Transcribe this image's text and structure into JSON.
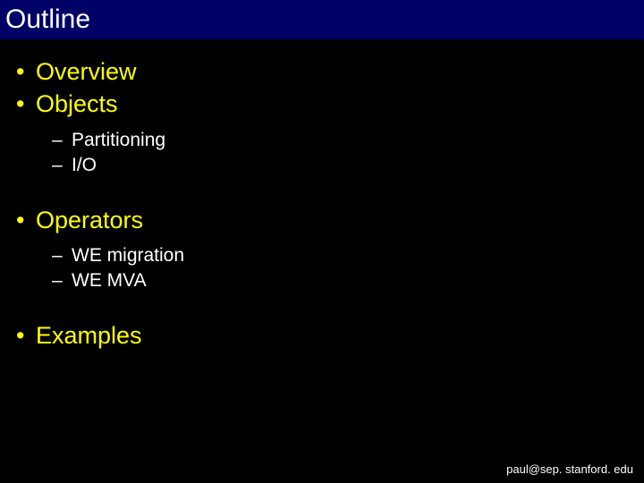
{
  "title": "Outline",
  "colors": {
    "background": "#000000",
    "title_bar_bg": "#000066",
    "title_text": "#ffffff",
    "level1_text": "#ffff00",
    "level2_text": "#ffffff",
    "footer_text": "#ffffff"
  },
  "typography": {
    "font_family": "Arial",
    "title_size_pt": 30,
    "level1_size_pt": 27,
    "level2_size_pt": 21,
    "footer_size_pt": 13
  },
  "outline": [
    {
      "label": "Overview",
      "children": []
    },
    {
      "label": "Objects",
      "children": [
        {
          "label": "Partitioning"
        },
        {
          "label": "I/O"
        }
      ]
    },
    {
      "label": "Operators",
      "children": [
        {
          "label": "WE migration"
        },
        {
          "label": "WE MVA"
        }
      ]
    },
    {
      "label": "Examples",
      "children": []
    }
  ],
  "footer": "paul@sep. stanford. edu"
}
